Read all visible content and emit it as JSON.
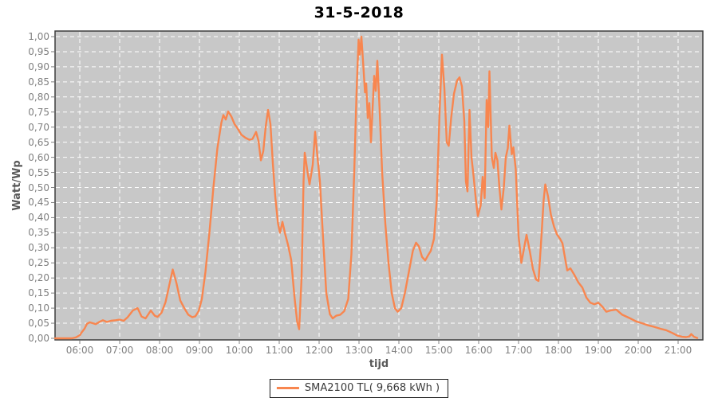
{
  "title": "31-5-2018",
  "axes": {
    "y_label": "Watt/Wp",
    "x_label": "tijd",
    "y_ticks": [
      "1,00",
      "0,95",
      "0,90",
      "0,85",
      "0,80",
      "0,75",
      "0,70",
      "0,65",
      "0,60",
      "0,55",
      "0,50",
      "0,45",
      "0,40",
      "0,35",
      "0,30",
      "0,25",
      "0,20",
      "0,15",
      "0,10",
      "0,05",
      "0,00"
    ],
    "x_ticks": [
      "06:00",
      "07:00",
      "08:00",
      "09:00",
      "10:00",
      "11:00",
      "12:00",
      "13:00",
      "14:00",
      "15:00",
      "16:00",
      "17:00",
      "18:00",
      "19:00",
      "20:00",
      "21:00"
    ]
  },
  "legend": {
    "label": "SMA2100 TL( 9,668 kWh )"
  },
  "colors": {
    "line": "#F8864F",
    "plot_bg": "#C8C8C8",
    "grid": "#FFFFFF",
    "border": "#3d3d3d",
    "axis_text": "#808080",
    "axis_title": "#595959",
    "tick": "#808080",
    "title": "#000000",
    "legend_border": "#1a1a1a",
    "legend_text": "#3a3a3a"
  },
  "chart_data": {
    "type": "line",
    "title": "31-5-2018",
    "xlabel": "tijd",
    "ylabel": "Watt/Wp",
    "ylim": [
      0.0,
      1.0
    ],
    "y_tick_step": 0.05,
    "x_range_hours": [
      5.38,
      21.62
    ],
    "x_tick_hours": [
      6,
      7,
      8,
      9,
      10,
      11,
      12,
      13,
      14,
      15,
      16,
      17,
      18,
      19,
      20,
      21
    ],
    "grid": "white dashed on gray background",
    "legend_position": "bottom-center",
    "series": [
      {
        "name": "SMA2100 TL( 9,668 kWh )",
        "color": "#F8864F",
        "points": [
          [
            5.38,
            0
          ],
          [
            5.6,
            0
          ],
          [
            5.8,
            0
          ],
          [
            5.9,
            0.003
          ],
          [
            6.0,
            0.01
          ],
          [
            6.05,
            0.02
          ],
          [
            6.12,
            0.032
          ],
          [
            6.18,
            0.048
          ],
          [
            6.25,
            0.053
          ],
          [
            6.33,
            0.05
          ],
          [
            6.4,
            0.047
          ],
          [
            6.5,
            0.055
          ],
          [
            6.58,
            0.06
          ],
          [
            6.68,
            0.054
          ],
          [
            6.78,
            0.058
          ],
          [
            6.9,
            0.06
          ],
          [
            7.0,
            0.062
          ],
          [
            7.1,
            0.058
          ],
          [
            7.2,
            0.07
          ],
          [
            7.33,
            0.092
          ],
          [
            7.45,
            0.1
          ],
          [
            7.55,
            0.072
          ],
          [
            7.65,
            0.066
          ],
          [
            7.78,
            0.092
          ],
          [
            7.88,
            0.075
          ],
          [
            7.95,
            0.071
          ],
          [
            8.05,
            0.085
          ],
          [
            8.15,
            0.12
          ],
          [
            8.25,
            0.18
          ],
          [
            8.33,
            0.228
          ],
          [
            8.42,
            0.185
          ],
          [
            8.52,
            0.125
          ],
          [
            8.62,
            0.1
          ],
          [
            8.72,
            0.078
          ],
          [
            8.82,
            0.07
          ],
          [
            8.9,
            0.073
          ],
          [
            8.98,
            0.09
          ],
          [
            9.06,
            0.13
          ],
          [
            9.15,
            0.22
          ],
          [
            9.25,
            0.35
          ],
          [
            9.35,
            0.5
          ],
          [
            9.45,
            0.63
          ],
          [
            9.55,
            0.715
          ],
          [
            9.6,
            0.74
          ],
          [
            9.66,
            0.725
          ],
          [
            9.72,
            0.752
          ],
          [
            9.8,
            0.735
          ],
          [
            9.88,
            0.71
          ],
          [
            9.96,
            0.695
          ],
          [
            10.05,
            0.675
          ],
          [
            10.15,
            0.665
          ],
          [
            10.25,
            0.658
          ],
          [
            10.33,
            0.661
          ],
          [
            10.42,
            0.684
          ],
          [
            10.48,
            0.655
          ],
          [
            10.54,
            0.59
          ],
          [
            10.6,
            0.62
          ],
          [
            10.66,
            0.7
          ],
          [
            10.72,
            0.757
          ],
          [
            10.78,
            0.71
          ],
          [
            10.84,
            0.58
          ],
          [
            10.9,
            0.47
          ],
          [
            10.97,
            0.38
          ],
          [
            11.02,
            0.35
          ],
          [
            11.08,
            0.386
          ],
          [
            11.15,
            0.345
          ],
          [
            11.22,
            0.31
          ],
          [
            11.3,
            0.26
          ],
          [
            11.38,
            0.14
          ],
          [
            11.45,
            0.055
          ],
          [
            11.5,
            0.03
          ],
          [
            11.56,
            0.2
          ],
          [
            11.61,
            0.52
          ],
          [
            11.64,
            0.615
          ],
          [
            11.7,
            0.56
          ],
          [
            11.76,
            0.51
          ],
          [
            11.84,
            0.575
          ],
          [
            11.9,
            0.685
          ],
          [
            11.96,
            0.6
          ],
          [
            12.02,
            0.52
          ],
          [
            12.1,
            0.33
          ],
          [
            12.18,
            0.15
          ],
          [
            12.27,
            0.08
          ],
          [
            12.34,
            0.066
          ],
          [
            12.43,
            0.075
          ],
          [
            12.53,
            0.078
          ],
          [
            12.63,
            0.09
          ],
          [
            12.73,
            0.13
          ],
          [
            12.81,
            0.28
          ],
          [
            12.88,
            0.55
          ],
          [
            12.94,
            0.82
          ],
          [
            12.99,
            0.99
          ],
          [
            13.02,
            0.94
          ],
          [
            13.06,
            1.0
          ],
          [
            13.11,
            0.9
          ],
          [
            13.15,
            0.815
          ],
          [
            13.18,
            0.845
          ],
          [
            13.22,
            0.73
          ],
          [
            13.26,
            0.78
          ],
          [
            13.3,
            0.65
          ],
          [
            13.34,
            0.76
          ],
          [
            13.38,
            0.87
          ],
          [
            13.42,
            0.82
          ],
          [
            13.46,
            0.92
          ],
          [
            13.52,
            0.75
          ],
          [
            13.58,
            0.55
          ],
          [
            13.66,
            0.38
          ],
          [
            13.74,
            0.25
          ],
          [
            13.82,
            0.15
          ],
          [
            13.9,
            0.1
          ],
          [
            13.97,
            0.088
          ],
          [
            14.06,
            0.1
          ],
          [
            14.15,
            0.15
          ],
          [
            14.25,
            0.22
          ],
          [
            14.35,
            0.29
          ],
          [
            14.43,
            0.317
          ],
          [
            14.5,
            0.305
          ],
          [
            14.58,
            0.27
          ],
          [
            14.66,
            0.258
          ],
          [
            14.73,
            0.275
          ],
          [
            14.8,
            0.29
          ],
          [
            14.88,
            0.33
          ],
          [
            14.95,
            0.46
          ],
          [
            15.02,
            0.75
          ],
          [
            15.08,
            0.94
          ],
          [
            15.14,
            0.83
          ],
          [
            15.2,
            0.65
          ],
          [
            15.25,
            0.638
          ],
          [
            15.31,
            0.73
          ],
          [
            15.38,
            0.81
          ],
          [
            15.46,
            0.855
          ],
          [
            15.52,
            0.865
          ],
          [
            15.58,
            0.835
          ],
          [
            15.64,
            0.72
          ],
          [
            15.68,
            0.52
          ],
          [
            15.72,
            0.487
          ],
          [
            15.77,
            0.757
          ],
          [
            15.82,
            0.6
          ],
          [
            15.87,
            0.54
          ],
          [
            15.93,
            0.46
          ],
          [
            15.98,
            0.405
          ],
          [
            16.05,
            0.44
          ],
          [
            16.1,
            0.535
          ],
          [
            16.15,
            0.465
          ],
          [
            16.2,
            0.79
          ],
          [
            16.24,
            0.7
          ],
          [
            16.27,
            0.885
          ],
          [
            16.33,
            0.6
          ],
          [
            16.38,
            0.565
          ],
          [
            16.42,
            0.615
          ],
          [
            16.47,
            0.59
          ],
          [
            16.52,
            0.5
          ],
          [
            16.57,
            0.427
          ],
          [
            16.63,
            0.5
          ],
          [
            16.68,
            0.6
          ],
          [
            16.73,
            0.63
          ],
          [
            16.77,
            0.705
          ],
          [
            16.83,
            0.61
          ],
          [
            16.87,
            0.633
          ],
          [
            16.93,
            0.56
          ],
          [
            17.0,
            0.34
          ],
          [
            17.07,
            0.25
          ],
          [
            17.14,
            0.3
          ],
          [
            17.2,
            0.343
          ],
          [
            17.28,
            0.29
          ],
          [
            17.36,
            0.23
          ],
          [
            17.44,
            0.195
          ],
          [
            17.5,
            0.19
          ],
          [
            17.57,
            0.33
          ],
          [
            17.63,
            0.46
          ],
          [
            17.67,
            0.51
          ],
          [
            17.74,
            0.47
          ],
          [
            17.81,
            0.41
          ],
          [
            17.89,
            0.37
          ],
          [
            17.96,
            0.345
          ],
          [
            18.04,
            0.33
          ],
          [
            18.1,
            0.315
          ],
          [
            18.16,
            0.27
          ],
          [
            18.22,
            0.225
          ],
          [
            18.3,
            0.232
          ],
          [
            18.4,
            0.21
          ],
          [
            18.5,
            0.185
          ],
          [
            18.6,
            0.168
          ],
          [
            18.7,
            0.135
          ],
          [
            18.8,
            0.118
          ],
          [
            18.9,
            0.113
          ],
          [
            19.0,
            0.118
          ],
          [
            19.1,
            0.105
          ],
          [
            19.2,
            0.088
          ],
          [
            19.3,
            0.092
          ],
          [
            19.45,
            0.095
          ],
          [
            19.6,
            0.078
          ],
          [
            19.8,
            0.066
          ],
          [
            19.95,
            0.056
          ],
          [
            20.1,
            0.05
          ],
          [
            20.25,
            0.043
          ],
          [
            20.4,
            0.038
          ],
          [
            20.55,
            0.032
          ],
          [
            20.7,
            0.027
          ],
          [
            20.85,
            0.018
          ],
          [
            20.98,
            0.009
          ],
          [
            21.1,
            0.005
          ],
          [
            21.2,
            0.004
          ],
          [
            21.28,
            0.006
          ],
          [
            21.33,
            0.014
          ],
          [
            21.4,
            0.005
          ],
          [
            21.48,
            0.001
          ]
        ]
      }
    ]
  }
}
